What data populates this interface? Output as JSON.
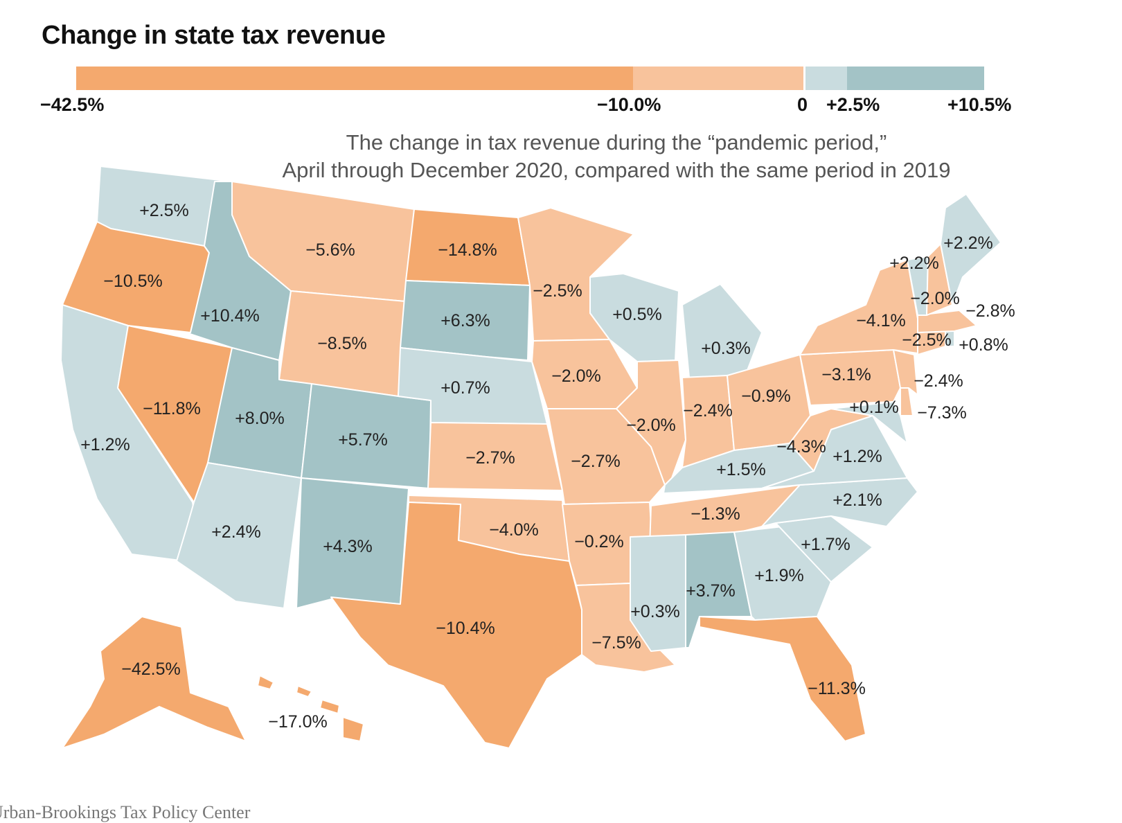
{
  "title": "Change in state tax revenue",
  "subtitle": {
    "line1": "The change in tax revenue during the “pandemic period,”",
    "line2": "April through December 2020, compared with the same period in 2019"
  },
  "source": "Urban-Brookings Tax Policy Center",
  "scale": {
    "ticks": [
      "−42.5%",
      "−10.0%",
      "0",
      "+2.5%",
      "+10.5%"
    ],
    "bins": [
      {
        "from": -42.5,
        "to": -10.0,
        "color": "#f4a96e"
      },
      {
        "from": -10.0,
        "to": 0,
        "color": "#f8c39c"
      },
      {
        "from": 0,
        "to": 2.5,
        "color": "#c9dcdf"
      },
      {
        "from": 2.5,
        "to": 10.5,
        "color": "#a3c3c6"
      }
    ]
  },
  "colors": {
    "strong_decline": "#f4a96e",
    "decline": "#f8c39c",
    "increase": "#c9dcdf",
    "strong_increase": "#a3c3c6"
  },
  "states": [
    {
      "state": "WA",
      "label": "+2.5%",
      "value": 2.5
    },
    {
      "state": "OR",
      "label": "−10.5%",
      "value": -10.5
    },
    {
      "state": "CA",
      "label": "+1.2%",
      "value": 1.2
    },
    {
      "state": "NV",
      "label": "−11.8%",
      "value": -11.8
    },
    {
      "state": "ID",
      "label": "+10.4%",
      "value": 10.4
    },
    {
      "state": "MT",
      "label": "−5.6%",
      "value": -5.6
    },
    {
      "state": "WY",
      "label": "−8.5%",
      "value": -8.5
    },
    {
      "state": "UT",
      "label": "+8.0%",
      "value": 8.0
    },
    {
      "state": "AZ",
      "label": "+2.4%",
      "value": 2.4
    },
    {
      "state": "CO",
      "label": "+5.7%",
      "value": 5.7
    },
    {
      "state": "NM",
      "label": "+4.3%",
      "value": 4.3
    },
    {
      "state": "ND",
      "label": "−14.8%",
      "value": -14.8
    },
    {
      "state": "SD",
      "label": "+6.3%",
      "value": 6.3
    },
    {
      "state": "NE",
      "label": "+0.7%",
      "value": 0.7
    },
    {
      "state": "KS",
      "label": "−2.7%",
      "value": -2.7
    },
    {
      "state": "OK",
      "label": "−4.0%",
      "value": -4.0
    },
    {
      "state": "TX",
      "label": "−10.4%",
      "value": -10.4
    },
    {
      "state": "MN",
      "label": "−2.5%",
      "value": -2.5
    },
    {
      "state": "IA",
      "label": "−2.0%",
      "value": -2.0
    },
    {
      "state": "MO",
      "label": "−2.7%",
      "value": -2.7
    },
    {
      "state": "AR",
      "label": "−0.2%",
      "value": -0.2
    },
    {
      "state": "LA",
      "label": "−7.5%",
      "value": -7.5
    },
    {
      "state": "WI",
      "label": "+0.5%",
      "value": 0.5
    },
    {
      "state": "IL",
      "label": "−2.0%",
      "value": -2.0
    },
    {
      "state": "MI",
      "label": "+0.3%",
      "value": 0.3
    },
    {
      "state": "IN",
      "label": "−2.4%",
      "value": -2.4
    },
    {
      "state": "OH",
      "label": "−0.9%",
      "value": -0.9
    },
    {
      "state": "KY",
      "label": "+1.5%",
      "value": 1.5
    },
    {
      "state": "TN",
      "label": "−1.3%",
      "value": -1.3
    },
    {
      "state": "MS",
      "label": "+0.3%",
      "value": 0.3
    },
    {
      "state": "AL",
      "label": "+3.7%",
      "value": 3.7
    },
    {
      "state": "GA",
      "label": "+1.9%",
      "value": 1.9
    },
    {
      "state": "FL",
      "label": "−11.3%",
      "value": -11.3
    },
    {
      "state": "SC",
      "label": "+1.7%",
      "value": 1.7
    },
    {
      "state": "NC",
      "label": "+2.1%",
      "value": 2.1
    },
    {
      "state": "VA",
      "label": "+1.2%",
      "value": 1.2
    },
    {
      "state": "WV",
      "label": "−4.3%",
      "value": -4.3
    },
    {
      "state": "PA",
      "label": "−3.1%",
      "value": -3.1
    },
    {
      "state": "MD",
      "label": "+0.1%",
      "value": 0.1
    },
    {
      "state": "DE",
      "label": "−7.3%",
      "value": -7.3
    },
    {
      "state": "NJ",
      "label": "−2.4%",
      "value": -2.4
    },
    {
      "state": "NY",
      "label": "−4.1%",
      "value": -4.1
    },
    {
      "state": "CT",
      "label": "−2.5%",
      "value": -2.5
    },
    {
      "state": "RI",
      "label": "+0.8%",
      "value": 0.8
    },
    {
      "state": "MA",
      "label": "−2.8%",
      "value": -2.8
    },
    {
      "state": "VT",
      "label": "+2.2%",
      "value": 2.2
    },
    {
      "state": "NH",
      "label": "−2.0%",
      "value": -2.0
    },
    {
      "state": "ME",
      "label": "+2.2%",
      "value": 2.2
    },
    {
      "state": "AK",
      "label": "−42.5%",
      "value": -42.5
    },
    {
      "state": "HI",
      "label": "−17.0%",
      "value": -17.0
    }
  ]
}
